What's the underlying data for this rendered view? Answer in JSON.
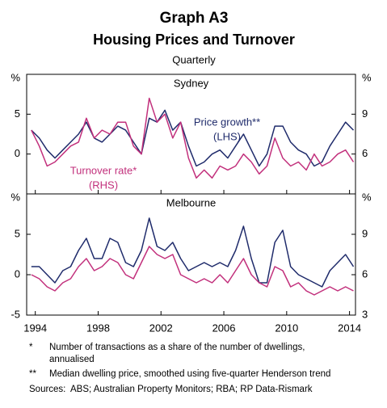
{
  "title": "Graph A3",
  "subtitle": "Housing Prices and Turnover",
  "frequency": "Quarterly",
  "chart_data": [
    {
      "type": "line",
      "title": "Sydney",
      "y_unit": "%",
      "x": [
        1993.75,
        1994.25,
        1994.75,
        1995.25,
        1995.75,
        1996.25,
        1996.75,
        1997.25,
        1997.75,
        1998.25,
        1998.75,
        1999.25,
        1999.75,
        2000.25,
        2000.75,
        2001.25,
        2001.75,
        2002.25,
        2002.75,
        2003.25,
        2003.75,
        2004.25,
        2004.75,
        2005.25,
        2005.75,
        2006.25,
        2006.75,
        2007.25,
        2007.75,
        2008.25,
        2008.75,
        2009.25,
        2009.75,
        2010.25,
        2010.75,
        2011.25,
        2011.75,
        2012.25,
        2012.75,
        2013.25,
        2013.75,
        2014.25
      ],
      "xlim": [
        1993.45,
        2014.38
      ],
      "xticks": [
        1994,
        1998,
        2002,
        2006,
        2010,
        2014
      ],
      "ylim": [
        -5,
        10
      ],
      "yticks": [
        0,
        5
      ],
      "y2lim": [
        3,
        12
      ],
      "y2ticks": [
        6,
        9
      ],
      "series": [
        {
          "name": "Price growth**",
          "note": "(LHS)",
          "color": "#1f2b6b",
          "values": [
            3,
            2,
            0.5,
            -0.5,
            0.5,
            1.5,
            2.5,
            4,
            2,
            1.5,
            2.5,
            3.5,
            3,
            1.5,
            0,
            4.5,
            4,
            5.5,
            3,
            4,
            1,
            -1.5,
            -1,
            0,
            0.5,
            -0.5,
            1,
            2.5,
            0.5,
            -1.5,
            0,
            3.5,
            3.5,
            1.5,
            0.5,
            0,
            -1.5,
            -1,
            1,
            2.5,
            4,
            3
          ]
        },
        {
          "name": "Turnover rate*",
          "note": "(RHS)",
          "axis": "y2",
          "color": "#c2307c",
          "values": [
            7.8,
            6.6,
            5.1,
            5.4,
            6,
            6.6,
            6.9,
            8.7,
            7.2,
            7.8,
            7.5,
            8.4,
            8.4,
            6.6,
            6,
            10.2,
            8.4,
            9,
            7.2,
            8.4,
            5.7,
            4.2,
            4.8,
            4.2,
            5.1,
            4.8,
            5.1,
            6,
            5.4,
            4.5,
            5.1,
            7.2,
            5.7,
            5.1,
            5.4,
            4.8,
            6,
            5.1,
            5.4,
            6,
            6.3,
            5.4
          ]
        }
      ]
    },
    {
      "type": "line",
      "title": "Melbourne",
      "y_unit": "%",
      "x": [
        1993.75,
        1994.25,
        1994.75,
        1995.25,
        1995.75,
        1996.25,
        1996.75,
        1997.25,
        1997.75,
        1998.25,
        1998.75,
        1999.25,
        1999.75,
        2000.25,
        2000.75,
        2001.25,
        2001.75,
        2002.25,
        2002.75,
        2003.25,
        2003.75,
        2004.25,
        2004.75,
        2005.25,
        2005.75,
        2006.25,
        2006.75,
        2007.25,
        2007.75,
        2008.25,
        2008.75,
        2009.25,
        2009.75,
        2010.25,
        2010.75,
        2011.25,
        2011.75,
        2012.25,
        2012.75,
        2013.25,
        2013.75,
        2014.25
      ],
      "xlim": [
        1993.45,
        2014.38
      ],
      "xticks": [
        1994,
        1998,
        2002,
        2006,
        2010,
        2014
      ],
      "ylim": [
        -5,
        10
      ],
      "yticks": [
        -5,
        0,
        5
      ],
      "y2lim": [
        3,
        12
      ],
      "y2ticks": [
        3,
        6,
        9
      ],
      "series": [
        {
          "color": "#1f2b6b",
          "values": [
            1,
            1,
            0,
            -1,
            0.5,
            1,
            3,
            4.5,
            2,
            2,
            4.5,
            4,
            1.5,
            1,
            3,
            7,
            3.5,
            3,
            4,
            2,
            0.5,
            1,
            1.5,
            1,
            1.5,
            1,
            3,
            6,
            2,
            -1,
            -1,
            4,
            5.5,
            1,
            0,
            -0.5,
            -1,
            -1.5,
            0.5,
            1.5,
            2.5,
            1
          ]
        },
        {
          "axis": "y2",
          "color": "#c2307c",
          "values": [
            6,
            5.7,
            5.1,
            4.8,
            5.4,
            5.7,
            6.6,
            7.2,
            6.3,
            6.6,
            7.2,
            6.9,
            6,
            5.7,
            6.9,
            8.1,
            7.5,
            7.2,
            7.5,
            6,
            5.7,
            5.4,
            5.7,
            5.4,
            6,
            5.4,
            6.3,
            7.2,
            6,
            5.4,
            5.1,
            6.6,
            6.3,
            5.1,
            5.4,
            4.8,
            4.5,
            4.8,
            5.1,
            4.8,
            5.1,
            4.8
          ]
        }
      ]
    }
  ],
  "footnotes": [
    {
      "marker": "*",
      "lines": [
        "Number of transactions as a share of the number of dwellings,",
        "annualised"
      ]
    },
    {
      "marker": "**",
      "lines": [
        "Median dwelling price, smoothed using five-quarter Henderson trend"
      ]
    }
  ],
  "sources": {
    "label": "Sources:",
    "text": "ABS; Australian Property Monitors; RBA; RP Data-Rismark"
  }
}
